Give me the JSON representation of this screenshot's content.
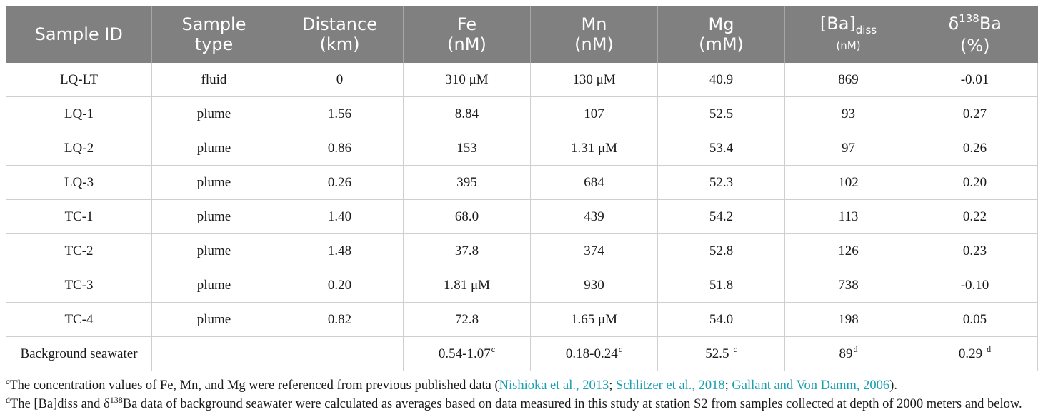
{
  "columns": [
    {
      "line1": "Sample ID",
      "line2": ""
    },
    {
      "line1": "Sample",
      "line2": "type"
    },
    {
      "line1": "Distance",
      "line2": "(km)"
    },
    {
      "line1": "Fe",
      "line2": "(nM)"
    },
    {
      "line1": "Mn",
      "line2": "(nM)"
    },
    {
      "line1": "Mg",
      "line2": "(mM)"
    },
    {
      "ba_main": "[Ba]",
      "ba_sub": "diss",
      "ba_unit": "(nM)"
    },
    {
      "delta_pre": "δ",
      "delta_sup": "138",
      "delta_post": "Ba",
      "delta_unit": "(%)"
    }
  ],
  "rows": [
    [
      "LQ-LT",
      "fluid",
      "0",
      "310 μM",
      "130 μM",
      "40.9",
      "869",
      "-0.01"
    ],
    [
      "LQ-1",
      "plume",
      "1.56",
      "8.84",
      "107",
      "52.5",
      "93",
      "0.27"
    ],
    [
      "LQ-2",
      "plume",
      "0.86",
      "153",
      "1.31 μM",
      "53.4",
      "97",
      "0.26"
    ],
    [
      "LQ-3",
      "plume",
      "0.26",
      "395",
      "684",
      "52.3",
      "102",
      "0.20"
    ],
    [
      "TC-1",
      "plume",
      "1.40",
      "68.0",
      "439",
      "54.2",
      "113",
      "0.22"
    ],
    [
      "TC-2",
      "plume",
      "1.48",
      "37.8",
      "374",
      "52.8",
      "126",
      "0.23"
    ],
    [
      "TC-3",
      "plume",
      "0.20",
      "1.81 μM",
      "930",
      "51.8",
      "738",
      "-0.10"
    ],
    [
      "TC-4",
      "plume",
      "0.82",
      "72.8",
      "1.65 μM",
      "54.0",
      "198",
      "0.05"
    ]
  ],
  "background_row": {
    "id": "Background seawater",
    "type": "",
    "distance": "",
    "fe": "0.54-1.07",
    "fe_sup": "c",
    "mn": "0.18-0.24",
    "mn_sup": "c",
    "mg": "52.5",
    "mg_sup": "c",
    "ba": "89",
    "ba_sup": "d",
    "delta": "0.29",
    "delta_sup": "d"
  },
  "notes": {
    "c_marker": "c",
    "c_text": "The concentration values of Fe, Mn, and Mg were referenced from previous published data (",
    "c_ref1": "Nishioka et al., 2013",
    "c_sep1": "; ",
    "c_ref2": "Schlitzer et al., 2018",
    "c_sep2": "; ",
    "c_ref3": "Gallant and Von Damm, 2006",
    "c_end": ").",
    "d_marker": "d",
    "d_text_pre": "The [Ba]diss and δ",
    "d_text_sup": "138",
    "d_text_post": "Ba data of background seawater were calculated as averages based on data measured in this study at station S2 from samples collected at depth of 2000 meters and below."
  },
  "colors": {
    "header_bg": "#808080",
    "header_text": "#ffffff",
    "link": "#1ba0b2"
  }
}
